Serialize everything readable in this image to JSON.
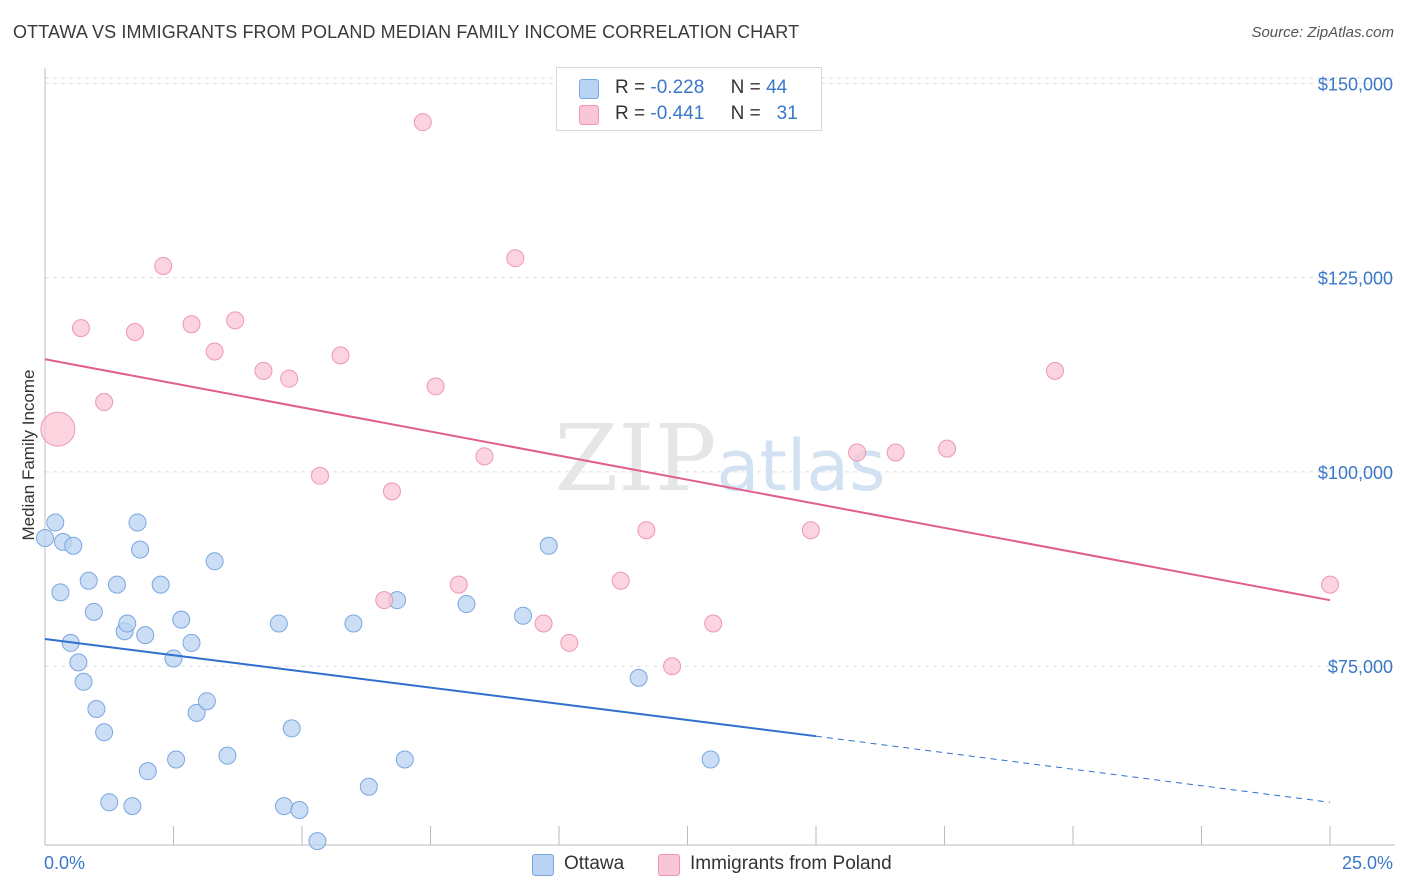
{
  "header": {
    "title": "OTTAWA VS IMMIGRANTS FROM POLAND MEDIAN FAMILY INCOME CORRELATION CHART",
    "source": "Source: ZipAtlas.com"
  },
  "legend_top": {
    "rows": [
      {
        "r_label": "R =",
        "r_value": "-0.228",
        "n_label": "N =",
        "n_value": "44"
      },
      {
        "r_label": "R =",
        "r_value": "-0.441",
        "n_label": "N =",
        "n_value": "31"
      }
    ]
  },
  "legend_bottom": {
    "items": [
      {
        "label": "Ottawa"
      },
      {
        "label": "Immigrants from Poland"
      }
    ]
  },
  "chart_data": {
    "type": "scatter",
    "title": "OTTAWA VS IMMIGRANTS FROM POLAND MEDIAN FAMILY INCOME CORRELATION CHART",
    "xlabel": "",
    "ylabel": "Median Family Income",
    "xlim": [
      0,
      25
    ],
    "ylim": [
      52000,
      153000
    ],
    "x_tick_labels": [
      "0.0%",
      "25.0%"
    ],
    "y_ticks": [
      75000,
      100000,
      125000,
      150000
    ],
    "y_tick_labels": [
      "$75,000",
      "$100,000",
      "$125,000",
      "$150,000"
    ],
    "grid": true,
    "watermark": {
      "part1": "ZIP",
      "part2": "atlas"
    },
    "colors": {
      "ottawa_fill": "#b9d3f2",
      "ottawa_stroke": "#7aa7e0",
      "ottawa_line": "#2f6fcf",
      "poland_fill": "#f9c6d6",
      "poland_stroke": "#ee97b3",
      "poland_line": "#e0608a",
      "axis_text": "#3a78c9"
    },
    "series": [
      {
        "name": "Ottawa",
        "points": [
          [
            0.0,
            91500
          ],
          [
            0.2,
            93500
          ],
          [
            0.3,
            84500
          ],
          [
            0.35,
            91000
          ],
          [
            0.5,
            78000
          ],
          [
            0.55,
            90500
          ],
          [
            0.65,
            75500
          ],
          [
            0.75,
            73000
          ],
          [
            0.85,
            86000
          ],
          [
            0.95,
            82000
          ],
          [
            1.0,
            69500
          ],
          [
            1.15,
            66500
          ],
          [
            1.25,
            57500
          ],
          [
            1.4,
            85500
          ],
          [
            1.55,
            79500
          ],
          [
            1.6,
            80500
          ],
          [
            1.7,
            57000
          ],
          [
            1.8,
            93500
          ],
          [
            1.85,
            90000
          ],
          [
            1.95,
            79000
          ],
          [
            2.0,
            61500
          ],
          [
            2.25,
            85500
          ],
          [
            2.5,
            76000
          ],
          [
            2.55,
            63000
          ],
          [
            2.65,
            81000
          ],
          [
            2.85,
            78000
          ],
          [
            2.95,
            69000
          ],
          [
            3.15,
            70500
          ],
          [
            3.3,
            88500
          ],
          [
            3.55,
            63500
          ],
          [
            4.55,
            80500
          ],
          [
            4.65,
            57000
          ],
          [
            4.8,
            67000
          ],
          [
            4.95,
            56500
          ],
          [
            5.3,
            52500
          ],
          [
            6.0,
            80500
          ],
          [
            6.3,
            59500
          ],
          [
            6.85,
            83500
          ],
          [
            7.0,
            63000
          ],
          [
            8.2,
            83000
          ],
          [
            9.3,
            81500
          ],
          [
            9.8,
            90500
          ],
          [
            11.55,
            73500
          ],
          [
            12.95,
            63000
          ]
        ]
      },
      {
        "name": "Immigrants from Poland",
        "points": [
          [
            0.25,
            105500
          ],
          [
            0.7,
            118500
          ],
          [
            1.15,
            109000
          ],
          [
            1.75,
            118000
          ],
          [
            2.3,
            126500
          ],
          [
            2.85,
            119000
          ],
          [
            3.3,
            115500
          ],
          [
            3.7,
            119500
          ],
          [
            4.25,
            113000
          ],
          [
            4.75,
            112000
          ],
          [
            5.35,
            99500
          ],
          [
            5.75,
            115000
          ],
          [
            6.6,
            83500
          ],
          [
            6.75,
            97500
          ],
          [
            7.6,
            111000
          ],
          [
            7.35,
            145000
          ],
          [
            8.05,
            85500
          ],
          [
            8.55,
            102000
          ],
          [
            9.15,
            127500
          ],
          [
            9.7,
            80500
          ],
          [
            10.2,
            78000
          ],
          [
            11.2,
            86000
          ],
          [
            11.7,
            92500
          ],
          [
            12.2,
            75000
          ],
          [
            13.0,
            80500
          ],
          [
            14.9,
            92500
          ],
          [
            15.8,
            102500
          ],
          [
            16.55,
            102500
          ],
          [
            17.55,
            103000
          ],
          [
            19.65,
            113000
          ],
          [
            25.0,
            85500
          ]
        ]
      }
    ],
    "trend_lines": [
      {
        "name": "Ottawa",
        "x_start": 0,
        "y_start": 78500,
        "x_solid_end": 15,
        "y_solid_end": 66000,
        "x_end": 25,
        "y_end": 57500
      },
      {
        "name": "Immigrants from Poland",
        "x_start": 0,
        "y_start": 114500,
        "x_end": 25,
        "y_end": 83500
      }
    ]
  }
}
